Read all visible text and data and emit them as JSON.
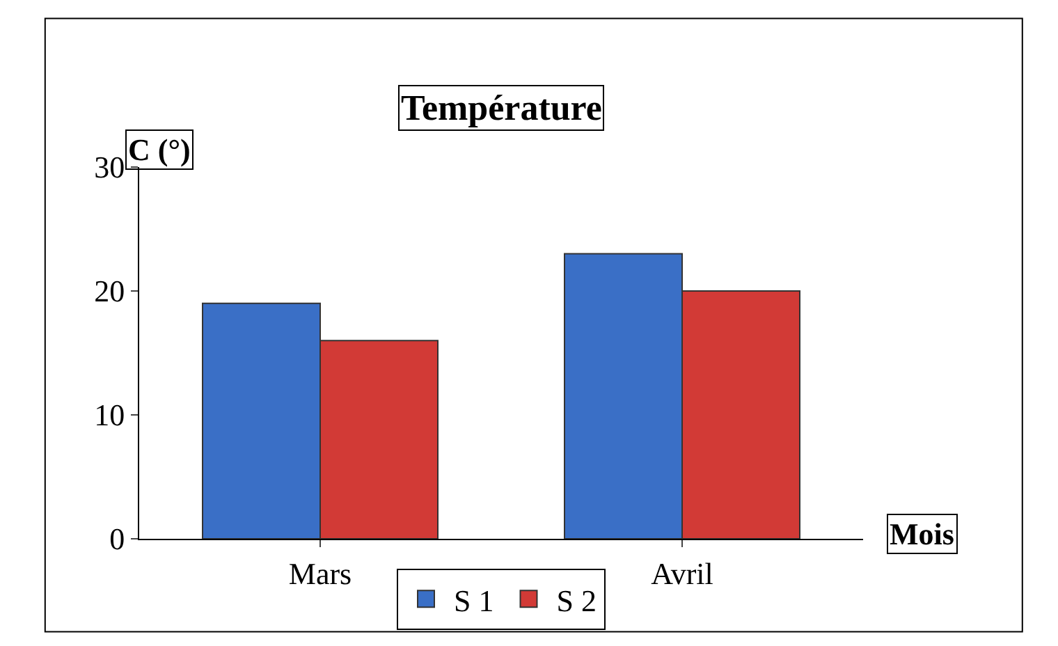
{
  "chart_data": {
    "type": "bar",
    "title": "Température",
    "xlabel": "Mois",
    "ylabel": "C (°)",
    "categories": [
      "Mars",
      "Avril"
    ],
    "series": [
      {
        "name": "S 1",
        "color": "#3a6fc6",
        "values": [
          19,
          23
        ]
      },
      {
        "name": "S 2",
        "color": "#d23a36",
        "values": [
          16,
          20
        ]
      }
    ],
    "ylim": [
      0,
      30
    ],
    "yticks": [
      0,
      10,
      20,
      30
    ],
    "legend": "bottom"
  }
}
